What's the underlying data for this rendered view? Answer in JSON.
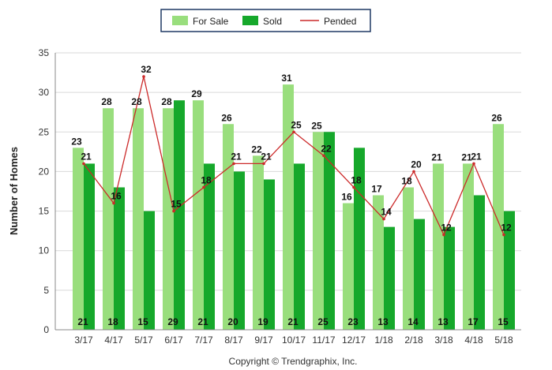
{
  "chart_data": {
    "type": "bar",
    "categories": [
      "3/17",
      "4/17",
      "5/17",
      "6/17",
      "7/17",
      "8/17",
      "9/17",
      "10/17",
      "11/17",
      "12/17",
      "1/18",
      "2/18",
      "3/18",
      "4/18",
      "5/18"
    ],
    "series": [
      {
        "name": "For Sale",
        "type": "bar",
        "color": "#99de7d",
        "values": [
          23,
          28,
          28,
          28,
          29,
          26,
          22,
          31,
          25,
          16,
          17,
          18,
          21,
          21,
          26
        ]
      },
      {
        "name": "Sold",
        "type": "bar",
        "color": "#16a82b",
        "values": [
          21,
          18,
          15,
          29,
          21,
          20,
          19,
          21,
          25,
          23,
          13,
          14,
          13,
          17,
          15
        ]
      },
      {
        "name": "Pended",
        "type": "line",
        "color": "#cc2a2a",
        "values": [
          21,
          16,
          32,
          15,
          18,
          21,
          21,
          25,
          22,
          18,
          14,
          20,
          12,
          21,
          12
        ]
      }
    ],
    "ylabel": "Number of Homes",
    "xlabel": "",
    "ylim": [
      0,
      35
    ],
    "yticks": [
      0,
      5,
      10,
      15,
      20,
      25,
      30,
      35
    ],
    "grid": true,
    "legend_position": "top-center",
    "copyright": "Copyright © Trendgraphix, Inc."
  }
}
